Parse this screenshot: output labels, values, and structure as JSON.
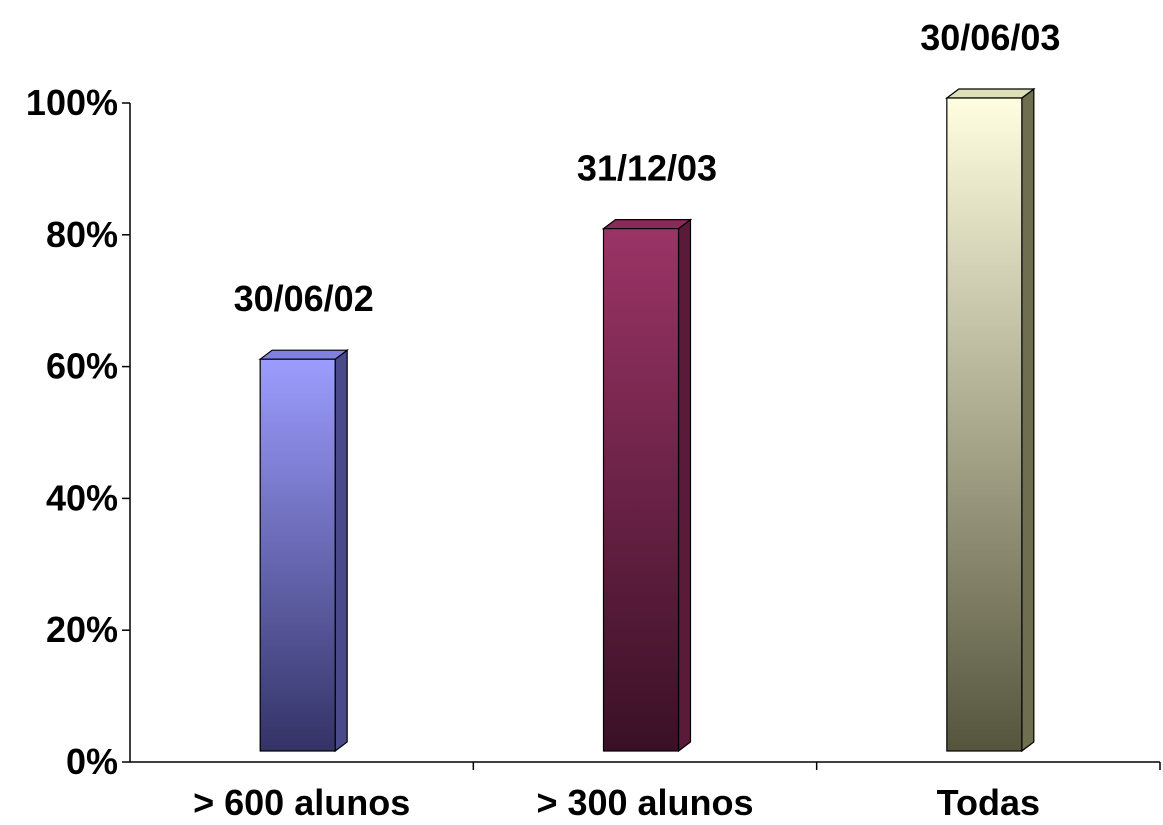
{
  "chart_data": {
    "type": "bar",
    "categories": [
      "> 600 alunos",
      "> 300 alunos",
      "Todas"
    ],
    "values": [
      60,
      80,
      100
    ],
    "data_labels": [
      "30/06/02",
      "31/12/03",
      "30/06/03"
    ],
    "y_ticks": [
      "0%",
      "20%",
      "40%",
      "60%",
      "80%",
      "100%"
    ],
    "ylim": [
      0,
      100
    ],
    "grid": false,
    "style_3d": true,
    "bar_colors": [
      {
        "top": "#9c9cff",
        "bottom": "#333366",
        "side": "#4a4a8a",
        "cap": "#8080e0"
      },
      {
        "top": "#9b3466",
        "bottom": "#3a1026",
        "side": "#5a1a3a",
        "cap": "#8a2a5a"
      },
      {
        "top": "#fffee0",
        "bottom": "#55553d",
        "side": "#6e6e50",
        "cap": "#e0e0b8"
      }
    ]
  }
}
